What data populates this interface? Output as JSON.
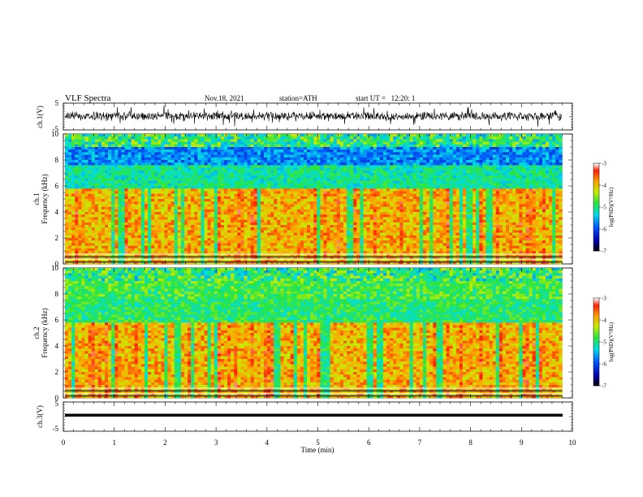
{
  "header": {
    "title": "VLF Spectra",
    "date": "Nov.18, 2021",
    "station": "station=ATH",
    "start": "start UT =   12:20: 1"
  },
  "chart_data": [
    {
      "type": "line",
      "name": "ch1-waveform",
      "ylabel": "ch.1(V)",
      "yticks": [
        "5",
        "-5"
      ],
      "ylim": [
        -5,
        5
      ],
      "xlim": [
        0,
        10
      ],
      "data_end_min": 9.8
    },
    {
      "type": "heatmap",
      "name": "ch1-spectrogram",
      "ylabel_line1": "ch.1",
      "ylabel_line2": "Frequency (kHz)",
      "yticks": [
        "0",
        "2",
        "4",
        "6",
        "8",
        "10"
      ],
      "ylim_khz": [
        0,
        10
      ],
      "xlim_min": [
        0,
        10
      ],
      "data_end_min": 9.8,
      "colorbar": {
        "label": "log(PSD)(V²/Hz)",
        "ticks": [
          "-3",
          "-4",
          "-5",
          "-6",
          "-7"
        ],
        "range": [
          -7,
          -3
        ]
      }
    },
    {
      "type": "heatmap",
      "name": "ch2-spectrogram",
      "ylabel_line1": "ch.2",
      "ylabel_line2": "Frequency (kHz)",
      "yticks": [
        "0",
        "2",
        "4",
        "6",
        "8",
        "10"
      ],
      "ylim_khz": [
        0,
        10
      ],
      "xlim_min": [
        0,
        10
      ],
      "data_end_min": 9.8,
      "colorbar": {
        "label": "log(PSD)(V²/Hz)",
        "ticks": [
          "-3",
          "-4",
          "-5",
          "-6",
          "-7"
        ],
        "range": [
          -7,
          -3
        ]
      }
    },
    {
      "type": "line",
      "name": "ch3-waveform",
      "ylabel": "ch.3(V)",
      "yticks": [
        "5",
        "-5"
      ],
      "ylim": [
        -5,
        5
      ],
      "xlim": [
        0,
        10
      ],
      "data_end_min": 9.8
    }
  ],
  "xaxis": {
    "label": "Time (min)",
    "ticks": [
      "0",
      "1",
      "2",
      "3",
      "4",
      "5",
      "6",
      "7",
      "8",
      "9",
      "10"
    ]
  },
  "colors": {
    "frame": "#000000",
    "waveform": "#000000"
  }
}
